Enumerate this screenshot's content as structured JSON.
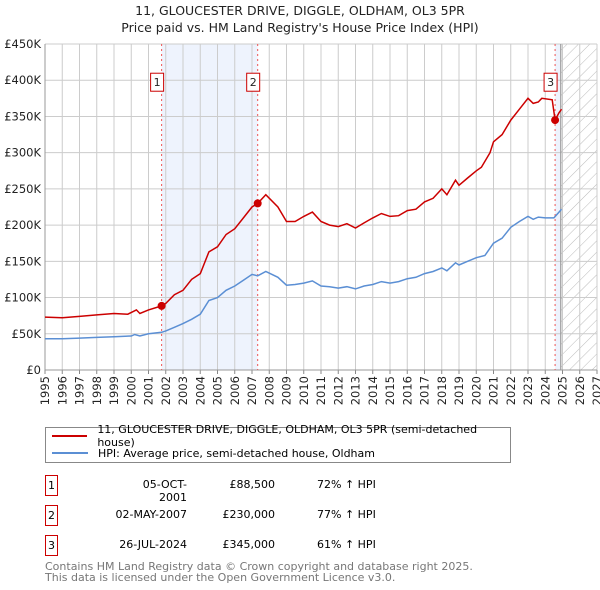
{
  "title": "11, GLOUCESTER DRIVE, DIGGLE, OLDHAM, OL3 5PR",
  "subtitle": "Price paid vs. HM Land Registry's House Price Index (HPI)",
  "colors": {
    "property": "#cc0000",
    "hpi": "#5b8fd4",
    "shade": "#eef3fd"
  },
  "chart_data": {
    "type": "line",
    "xlim": [
      1995,
      2027
    ],
    "ylim": [
      0,
      450000
    ],
    "x_ticks": [
      "1995",
      "1996",
      "1997",
      "1998",
      "1999",
      "2000",
      "2001",
      "2002",
      "2003",
      "2004",
      "2005",
      "2006",
      "2007",
      "2008",
      "2009",
      "2010",
      "2011",
      "2012",
      "2013",
      "2014",
      "2015",
      "2016",
      "2017",
      "2018",
      "2019",
      "2020",
      "2021",
      "2022",
      "2023",
      "2024",
      "2025",
      "2026",
      "2027"
    ],
    "y_ticks": [
      {
        "value": 0,
        "label": "£0"
      },
      {
        "value": 50000,
        "label": "£50K"
      },
      {
        "value": 100000,
        "label": "£100K"
      },
      {
        "value": 150000,
        "label": "£150K"
      },
      {
        "value": 200000,
        "label": "£200K"
      },
      {
        "value": 250000,
        "label": "£250K"
      },
      {
        "value": 300000,
        "label": "£300K"
      },
      {
        "value": 350000,
        "label": "£350K"
      },
      {
        "value": 400000,
        "label": "£400K"
      },
      {
        "value": 450000,
        "label": "£450K"
      }
    ],
    "grid": true,
    "forecast_hatch_from": 2024.9,
    "series": [
      {
        "name": "11, GLOUCESTER DRIVE, DIGGLE, OLDHAM, OL3 5PR (semi-detached house)",
        "color": "#cc0000",
        "points": [
          [
            1995,
            73
          ],
          [
            1996,
            72
          ],
          [
            1997,
            74
          ],
          [
            1998,
            76
          ],
          [
            1999,
            78
          ],
          [
            1999.8,
            77
          ],
          [
            2000.3,
            83
          ],
          [
            2000.5,
            78
          ],
          [
            2001,
            83
          ],
          [
            2001.76,
            88.5
          ],
          [
            2002,
            92
          ],
          [
            2002.5,
            104
          ],
          [
            2003,
            110
          ],
          [
            2003.5,
            125
          ],
          [
            2004,
            133
          ],
          [
            2004.5,
            163
          ],
          [
            2005,
            170
          ],
          [
            2005.5,
            187
          ],
          [
            2006,
            195
          ],
          [
            2006.5,
            210
          ],
          [
            2007,
            225
          ],
          [
            2007.33,
            230
          ],
          [
            2007.8,
            242
          ],
          [
            2008.5,
            225
          ],
          [
            2009,
            205
          ],
          [
            2009.5,
            205
          ],
          [
            2010,
            212
          ],
          [
            2010.5,
            218
          ],
          [
            2011,
            205
          ],
          [
            2011.5,
            200
          ],
          [
            2012,
            198
          ],
          [
            2012.5,
            202
          ],
          [
            2013,
            196
          ],
          [
            2013.5,
            203
          ],
          [
            2014,
            210
          ],
          [
            2014.5,
            216
          ],
          [
            2015,
            212
          ],
          [
            2015.5,
            213
          ],
          [
            2016,
            220
          ],
          [
            2016.5,
            222
          ],
          [
            2017,
            232
          ],
          [
            2017.5,
            237
          ],
          [
            2018,
            250
          ],
          [
            2018.3,
            242
          ],
          [
            2018.8,
            262
          ],
          [
            2019,
            255
          ],
          [
            2019.5,
            265
          ],
          [
            2020,
            275
          ],
          [
            2020.3,
            280
          ],
          [
            2020.8,
            300
          ],
          [
            2021,
            315
          ],
          [
            2021.5,
            325
          ],
          [
            2022,
            345
          ],
          [
            2022.5,
            360
          ],
          [
            2023,
            375
          ],
          [
            2023.3,
            368
          ],
          [
            2023.6,
            370
          ],
          [
            2023.8,
            375
          ],
          [
            2024.4,
            373
          ],
          [
            2024.57,
            345
          ],
          [
            2024.8,
            355
          ],
          [
            2024.95,
            360
          ]
        ]
      },
      {
        "name": "HPI: Average price, semi-detached house, Oldham",
        "color": "#5b8fd4",
        "points": [
          [
            1995,
            43
          ],
          [
            1996,
            43
          ],
          [
            1997,
            44
          ],
          [
            1998,
            45
          ],
          [
            1999,
            46
          ],
          [
            2000,
            47
          ],
          [
            2000.2,
            49
          ],
          [
            2000.5,
            47
          ],
          [
            2001,
            50
          ],
          [
            2001.76,
            52
          ],
          [
            2002,
            54
          ],
          [
            2002.5,
            59
          ],
          [
            2003,
            64
          ],
          [
            2003.5,
            70
          ],
          [
            2004,
            77
          ],
          [
            2004.5,
            96
          ],
          [
            2005,
            100
          ],
          [
            2005.5,
            110
          ],
          [
            2006,
            116
          ],
          [
            2006.5,
            124
          ],
          [
            2007,
            132
          ],
          [
            2007.33,
            130
          ],
          [
            2007.8,
            136
          ],
          [
            2008.5,
            128
          ],
          [
            2009,
            117
          ],
          [
            2009.5,
            118
          ],
          [
            2010,
            120
          ],
          [
            2010.5,
            123
          ],
          [
            2011,
            116
          ],
          [
            2011.5,
            115
          ],
          [
            2012,
            113
          ],
          [
            2012.5,
            115
          ],
          [
            2013,
            112
          ],
          [
            2013.5,
            116
          ],
          [
            2014,
            118
          ],
          [
            2014.5,
            122
          ],
          [
            2015,
            120
          ],
          [
            2015.5,
            122
          ],
          [
            2016,
            126
          ],
          [
            2016.5,
            128
          ],
          [
            2017,
            133
          ],
          [
            2017.5,
            136
          ],
          [
            2018,
            141
          ],
          [
            2018.3,
            137
          ],
          [
            2018.8,
            148
          ],
          [
            2019,
            145
          ],
          [
            2019.5,
            150
          ],
          [
            2020,
            155
          ],
          [
            2020.5,
            158
          ],
          [
            2021,
            175
          ],
          [
            2021.5,
            182
          ],
          [
            2022,
            197
          ],
          [
            2022.5,
            205
          ],
          [
            2023,
            212
          ],
          [
            2023.3,
            208
          ],
          [
            2023.6,
            211
          ],
          [
            2024,
            210
          ],
          [
            2024.5,
            210
          ],
          [
            2024.8,
            218
          ],
          [
            2024.95,
            222
          ]
        ]
      }
    ],
    "y_units": "thousands GBP in points",
    "sales": [
      {
        "label": "1",
        "x": 2001.76,
        "price": 88500
      },
      {
        "label": "2",
        "x": 2007.33,
        "price": 230000
      },
      {
        "label": "3",
        "x": 2024.57,
        "price": 345000
      }
    ]
  },
  "legend": {
    "property": "11, GLOUCESTER DRIVE, DIGGLE, OLDHAM, OL3 5PR (semi-detached house)",
    "hpi": "HPI: Average price, semi-detached house, Oldham"
  },
  "sales_table": [
    {
      "num": "1",
      "date": "05-OCT-2001",
      "price": "£88,500",
      "hpi": "72% ↑ HPI"
    },
    {
      "num": "2",
      "date": "02-MAY-2007",
      "price": "£230,000",
      "hpi": "77% ↑ HPI"
    },
    {
      "num": "3",
      "date": "26-JUL-2024",
      "price": "£345,000",
      "hpi": "61% ↑ HPI"
    }
  ],
  "footer": {
    "line1": "Contains HM Land Registry data © Crown copyright and database right 2025.",
    "line2": "This data is licensed under the Open Government Licence v3.0."
  }
}
